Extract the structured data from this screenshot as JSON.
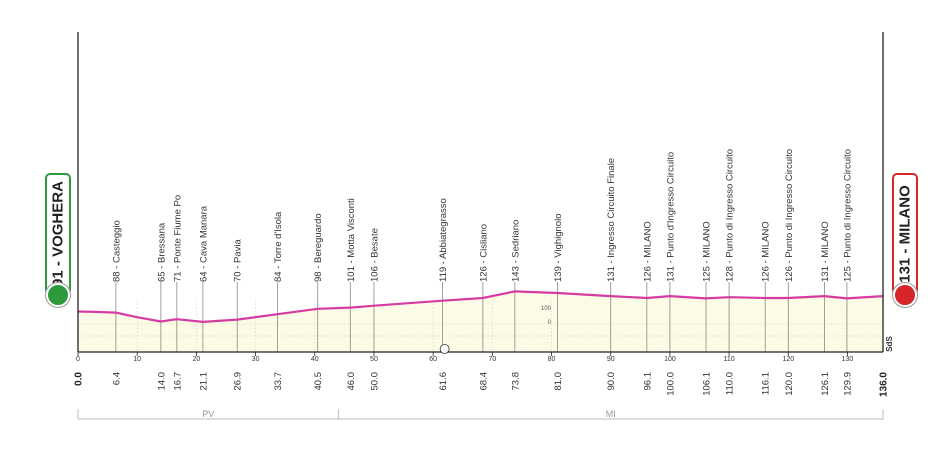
{
  "chart_data": {
    "type": "area",
    "start": {
      "label": "91 - VOGHERA",
      "km": 0.0,
      "altitude": 91
    },
    "finish": {
      "label": "131 - MILANO",
      "km": 136.0,
      "altitude": 131
    },
    "xlim": [
      0,
      136
    ],
    "x_ticks": [
      0,
      10,
      20,
      30,
      40,
      50,
      60,
      70,
      80,
      90,
      100,
      110,
      120,
      130
    ],
    "y_ticks": [
      {
        "value": 0,
        "label": "0"
      },
      {
        "value": 100,
        "label": "100"
      }
    ],
    "profile": [
      {
        "km": 0,
        "alt": 91
      },
      {
        "km": 3,
        "alt": 90
      },
      {
        "km": 6.4,
        "alt": 88
      },
      {
        "km": 10,
        "alt": 76
      },
      {
        "km": 14,
        "alt": 65
      },
      {
        "km": 16.7,
        "alt": 71
      },
      {
        "km": 21.1,
        "alt": 64
      },
      {
        "km": 26.9,
        "alt": 70
      },
      {
        "km": 33.7,
        "alt": 84
      },
      {
        "km": 40.5,
        "alt": 98
      },
      {
        "km": 46,
        "alt": 101
      },
      {
        "km": 50,
        "alt": 106
      },
      {
        "km": 61.6,
        "alt": 119
      },
      {
        "km": 68.4,
        "alt": 126
      },
      {
        "km": 73.8,
        "alt": 143
      },
      {
        "km": 81,
        "alt": 139
      },
      {
        "km": 90,
        "alt": 131
      },
      {
        "km": 96.1,
        "alt": 126
      },
      {
        "km": 100,
        "alt": 131
      },
      {
        "km": 106.1,
        "alt": 125
      },
      {
        "km": 110,
        "alt": 128
      },
      {
        "km": 116.1,
        "alt": 126
      },
      {
        "km": 120,
        "alt": 126
      },
      {
        "km": 126.1,
        "alt": 131
      },
      {
        "km": 129.9,
        "alt": 125
      },
      {
        "km": 136,
        "alt": 131
      }
    ],
    "waypoints": [
      {
        "km": 6.4,
        "km_label": "6.4",
        "label": "88 - Casteggio"
      },
      {
        "km": 14.0,
        "km_label": "14.0",
        "label": "65 - Bressana"
      },
      {
        "km": 16.7,
        "km_label": "16.7",
        "label": "71 - Ponte Fiume Po"
      },
      {
        "km": 21.1,
        "km_label": "21.1",
        "label": "64 - Cava Manara"
      },
      {
        "km": 26.9,
        "km_label": "26.9",
        "label": "70 - Pavia"
      },
      {
        "km": 33.7,
        "km_label": "33.7",
        "label": "84 - Torre d'Isola"
      },
      {
        "km": 40.5,
        "km_label": "40.5",
        "label": "98 - Bereguardo"
      },
      {
        "km": 46.0,
        "km_label": "46.0",
        "label": "101 - Motta Visconti"
      },
      {
        "km": 50.0,
        "km_label": "50.0",
        "label": "106 - Besate"
      },
      {
        "km": 61.6,
        "km_label": "61.6",
        "label": "119 - Abbiategrasso"
      },
      {
        "km": 68.4,
        "km_label": "68.4",
        "label": "126 - Cisliano"
      },
      {
        "km": 73.8,
        "km_label": "73.8",
        "label": "143 - Sedriano"
      },
      {
        "km": 81.0,
        "km_label": "81.0",
        "label": "139 - Vighignolo"
      },
      {
        "km": 90.0,
        "km_label": "90.0",
        "label": "131 - Ingresso Circuito Finale"
      },
      {
        "km": 96.1,
        "km_label": "96.1",
        "label": "126 - MILANO"
      },
      {
        "km": 100.0,
        "km_label": "100.0",
        "label": "131 - Punto d'Ingresso Circuito"
      },
      {
        "km": 106.1,
        "km_label": "106.1",
        "label": "125 - MILANO"
      },
      {
        "km": 110.0,
        "km_label": "110.0",
        "label": "128 - Punto di Ingresso Circuito"
      },
      {
        "km": 116.1,
        "km_label": "116.1",
        "label": "126 - MILANO"
      },
      {
        "km": 120.0,
        "km_label": "120.0",
        "label": "126 - Punto di Ingresso Circuito"
      },
      {
        "km": 126.1,
        "km_label": "126.1",
        "label": "131 - MILANO"
      },
      {
        "km": 129.9,
        "km_label": "129.9",
        "label": "125 - Punto di Ingresso Circuito"
      }
    ],
    "start_km_label": "0.0",
    "finish_km_label": "136.0",
    "regions": [
      {
        "label": "PV",
        "from": 0,
        "to": 44
      },
      {
        "label": "MI",
        "from": 44,
        "to": 136
      }
    ],
    "finish_mark": "SdS",
    "colors": {
      "profile_line": "#d63ba3",
      "fill": "#fbfbe6",
      "start": "#2e9a3d",
      "finish": "#d7262b"
    }
  }
}
